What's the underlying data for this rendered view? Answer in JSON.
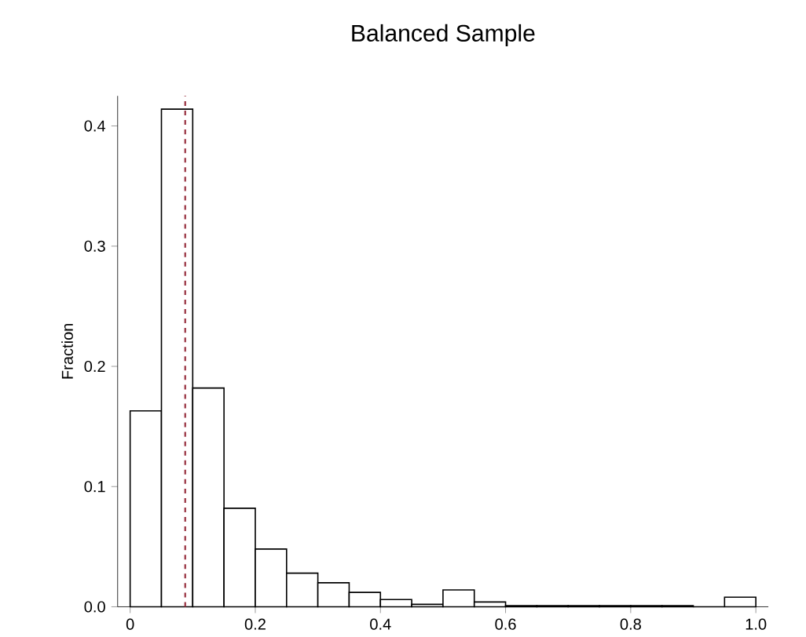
{
  "chart_data": {
    "type": "histogram",
    "title": "Balanced Sample",
    "ylabel": "Fraction",
    "bins": [
      0,
      0.05,
      0.1,
      0.15,
      0.2,
      0.25,
      0.3,
      0.35,
      0.4,
      0.45,
      0.5,
      0.55,
      0.6,
      0.65,
      0.7,
      0.75,
      0.8,
      0.85,
      0.9,
      0.95,
      1.0
    ],
    "values": [
      0.163,
      0.414,
      0.182,
      0.082,
      0.048,
      0.028,
      0.02,
      0.012,
      0.006,
      0.002,
      0.014,
      0.004,
      0.001,
      0.001,
      0.001,
      0.001,
      0.001,
      0.001,
      0,
      0.008
    ],
    "color": "#000000",
    "xlim": [
      -0.02,
      1.02
    ],
    "ylim": [
      0,
      0.425
    ],
    "xticks": [
      0,
      0.2,
      0.4,
      0.6,
      0.8,
      {
        "value": 1.0,
        "label": "1.0"
      }
    ],
    "yticks": [
      {
        "value": 0,
        "label": "0.0"
      },
      0.1,
      0.2,
      0.3,
      0.4
    ],
    "ref_lines": [
      {
        "axis": "x",
        "value": 0.088,
        "color": "#a0404e",
        "line_style": "dashed"
      }
    ],
    "grid": false
  }
}
